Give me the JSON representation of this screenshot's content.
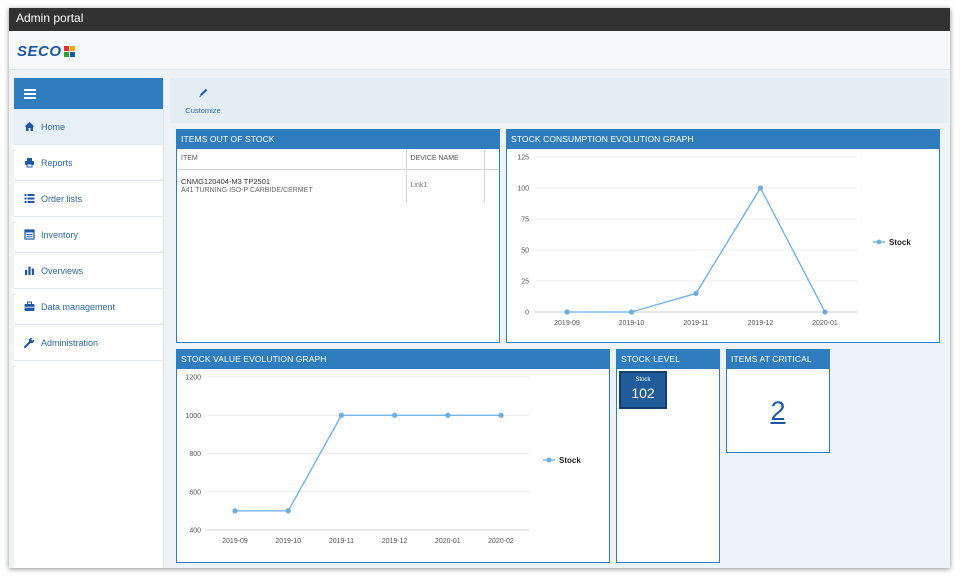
{
  "window": {
    "title": "Admin portal"
  },
  "brand": {
    "logo_text": "SECO",
    "colors": [
      "#e8302a",
      "#f6a800",
      "#2e9e3e",
      "#1d58a8"
    ]
  },
  "sidebar": {
    "items": [
      {
        "label": "Home",
        "icon": "home-icon"
      },
      {
        "label": "Reports",
        "icon": "printer-icon"
      },
      {
        "label": "Order lists",
        "icon": "list-icon"
      },
      {
        "label": "Inventory",
        "icon": "inventory-icon"
      },
      {
        "label": "Overviews",
        "icon": "bar-chart-icon"
      },
      {
        "label": "Data management",
        "icon": "briefcase-icon"
      },
      {
        "label": "Administration",
        "icon": "wrench-icon"
      }
    ]
  },
  "toolbar": {
    "customize_label": "Customize"
  },
  "panels": {
    "out_of_stock": {
      "title": "ITEMS OUT OF STOCK",
      "columns": [
        "ITEM",
        "DEVICE NAME"
      ],
      "rows": [
        {
          "item_code": "CNMG120404-M3 TP2501",
          "item_desc": "A41 TURNING ISO-P CARBIDE/CERMET",
          "device": "Link1"
        }
      ]
    },
    "consumption": {
      "title": "STOCK CONSUMPTION EVOLUTION GRAPH"
    },
    "value": {
      "title": "STOCK VALUE EVOLUTION GRAPH"
    },
    "stock_level": {
      "title": "STOCK LEVEL",
      "tile_label": "Stock",
      "tile_value": "102"
    },
    "critical": {
      "title": "ITEMS AT CRITICAL",
      "value": "2"
    }
  },
  "accent": "#2f7dbe",
  "series_color": "#6aaee6",
  "chart_data": [
    {
      "type": "line",
      "title": "STOCK CONSUMPTION EVOLUTION GRAPH",
      "categories": [
        "2019-09",
        "2019-10",
        "2019-11",
        "2019-12",
        "2020-01"
      ],
      "series": [
        {
          "name": "Stock",
          "values": [
            0,
            0,
            15,
            100,
            0
          ]
        }
      ],
      "ylim": [
        0,
        125
      ],
      "yticks": [
        "0",
        "25",
        "50",
        "75",
        "100",
        "125"
      ],
      "grid": true,
      "legend": "right"
    },
    {
      "type": "line",
      "title": "STOCK VALUE EVOLUTION GRAPH",
      "categories": [
        "2019-09",
        "2019-10",
        "2019-11",
        "2019-12",
        "2020-01",
        "2020-02"
      ],
      "series": [
        {
          "name": "Stock",
          "values": [
            500,
            500,
            1000,
            1000,
            1000,
            1000
          ]
        }
      ],
      "ylim": [
        400,
        1200
      ],
      "yticks": [
        "400",
        "600",
        "800",
        "1000",
        "1200"
      ],
      "grid": true,
      "legend": "right"
    }
  ]
}
